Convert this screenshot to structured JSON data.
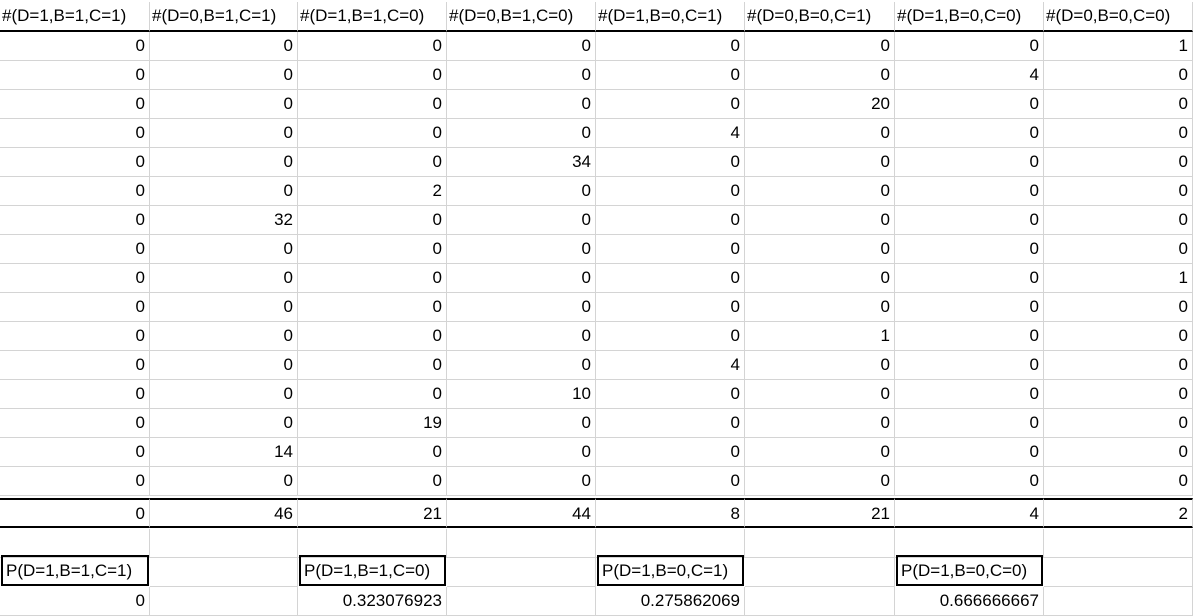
{
  "headers": [
    "#(D=1,B=1,C=1)",
    "#(D=0,B=1,C=1)",
    "#(D=1,B=1,C=0)",
    "#(D=0,B=1,C=0)",
    "#(D=1,B=0,C=1)",
    "#(D=0,B=0,C=1)",
    "#(D=1,B=0,C=0)",
    "#(D=0,B=0,C=0)"
  ],
  "rows": [
    [
      "0",
      "0",
      "0",
      "0",
      "0",
      "0",
      "0",
      "1"
    ],
    [
      "0",
      "0",
      "0",
      "0",
      "0",
      "0",
      "4",
      "0"
    ],
    [
      "0",
      "0",
      "0",
      "0",
      "0",
      "20",
      "0",
      "0"
    ],
    [
      "0",
      "0",
      "0",
      "0",
      "4",
      "0",
      "0",
      "0"
    ],
    [
      "0",
      "0",
      "0",
      "34",
      "0",
      "0",
      "0",
      "0"
    ],
    [
      "0",
      "0",
      "2",
      "0",
      "0",
      "0",
      "0",
      "0"
    ],
    [
      "0",
      "32",
      "0",
      "0",
      "0",
      "0",
      "0",
      "0"
    ],
    [
      "0",
      "0",
      "0",
      "0",
      "0",
      "0",
      "0",
      "0"
    ],
    [
      "0",
      "0",
      "0",
      "0",
      "0",
      "0",
      "0",
      "1"
    ],
    [
      "0",
      "0",
      "0",
      "0",
      "0",
      "0",
      "0",
      "0"
    ],
    [
      "0",
      "0",
      "0",
      "0",
      "0",
      "1",
      "0",
      "0"
    ],
    [
      "0",
      "0",
      "0",
      "0",
      "4",
      "0",
      "0",
      "0"
    ],
    [
      "0",
      "0",
      "0",
      "10",
      "0",
      "0",
      "0",
      "0"
    ],
    [
      "0",
      "0",
      "19",
      "0",
      "0",
      "0",
      "0",
      "0"
    ],
    [
      "0",
      "14",
      "0",
      "0",
      "0",
      "0",
      "0",
      "0"
    ],
    [
      "0",
      "0",
      "0",
      "0",
      "0",
      "0",
      "0",
      "0"
    ]
  ],
  "totals": [
    "0",
    "46",
    "21",
    "44",
    "8",
    "21",
    "4",
    "2"
  ],
  "probabilities": [
    {
      "label": "P(D=1,B=1,C=1)",
      "value": "0"
    },
    {
      "label": "P(D=1,B=1,C=0)",
      "value": "0.323076923"
    },
    {
      "label": "P(D=1,B=0,C=1)",
      "value": "0.275862069"
    },
    {
      "label": "P(D=1,B=0,C=0)",
      "value": "0.666666667"
    }
  ]
}
